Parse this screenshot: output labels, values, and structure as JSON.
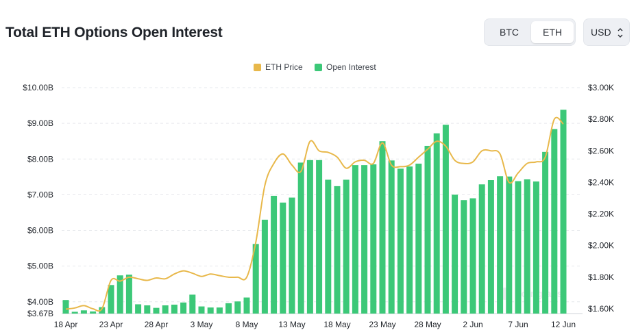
{
  "header": {
    "title": "Total ETH Options Open Interest",
    "asset_toggle": [
      "BTC",
      "ETH"
    ],
    "selected_asset": "ETH",
    "currency": "USD"
  },
  "colors": {
    "bar": "#3cc878",
    "line": "#e8b84a",
    "grid": "#e6e8ec",
    "axis_text": "#1f2329"
  },
  "watermark": "coinglass",
  "chart_data": {
    "type": "bar",
    "title": "Total ETH Options Open Interest",
    "legend": [
      {
        "name": "ETH Price",
        "color": "#e8b84a",
        "kind": "line"
      },
      {
        "name": "Open Interest",
        "color": "#3cc878",
        "kind": "bar"
      }
    ],
    "legend_position": "top-center",
    "grid": true,
    "x_tick_labels": [
      "18 Apr",
      "23 Apr",
      "28 Apr",
      "3 May",
      "8 May",
      "13 May",
      "18 May",
      "23 May",
      "28 May",
      "2 Jun",
      "7 Jun",
      "12 Jun"
    ],
    "x_tick_index": [
      0,
      5,
      10,
      15,
      20,
      25,
      30,
      35,
      40,
      45,
      50,
      55
    ],
    "left_axis": {
      "ticks": [
        "$3.67B",
        "$4.00B",
        "$5.00B",
        "$6.00B",
        "$7.00B",
        "$8.00B",
        "$9.00B",
        "$10.00B"
      ],
      "tick_values": [
        3.67,
        4,
        5,
        6,
        7,
        8,
        9,
        10
      ],
      "range": [
        3.67,
        10
      ]
    },
    "right_axis": {
      "ticks": [
        "$1.60K",
        "$1.80K",
        "$2.00K",
        "$2.20K",
        "$2.40K",
        "$2.60K",
        "$2.80K",
        "$3.00K"
      ],
      "tick_values": [
        1.6,
        1.8,
        2.0,
        2.2,
        2.4,
        2.6,
        2.8,
        3.0
      ],
      "range": [
        1.6,
        3.0
      ]
    },
    "series": [
      {
        "name": "Open Interest",
        "axis": "left",
        "unit": "USD billions",
        "values": [
          4.05,
          3.72,
          3.76,
          3.73,
          3.85,
          4.47,
          4.74,
          4.76,
          3.93,
          3.9,
          3.83,
          3.9,
          3.92,
          3.98,
          4.2,
          3.87,
          3.84,
          3.84,
          3.96,
          4.01,
          4.12,
          5.62,
          6.3,
          6.97,
          6.78,
          6.92,
          7.9,
          7.97,
          7.97,
          7.42,
          7.24,
          7.42,
          7.83,
          7.83,
          7.85,
          8.5,
          7.96,
          7.73,
          7.79,
          7.87,
          8.37,
          8.72,
          8.96,
          7.0,
          6.85,
          6.9,
          7.29,
          7.41,
          7.52,
          7.51,
          7.38,
          7.43,
          7.37,
          8.2,
          8.84,
          9.38
        ]
      },
      {
        "name": "ETH Price",
        "axis": "right",
        "unit": "USD thousands",
        "values": [
          1.598,
          1.605,
          1.62,
          1.6,
          1.6,
          1.78,
          1.775,
          1.8,
          1.79,
          1.78,
          1.795,
          1.79,
          1.82,
          1.84,
          1.825,
          1.805,
          1.82,
          1.81,
          1.8,
          1.8,
          1.8,
          2.02,
          2.38,
          2.52,
          2.58,
          2.51,
          2.47,
          2.66,
          2.6,
          2.59,
          2.56,
          2.49,
          2.53,
          2.54,
          2.52,
          2.65,
          2.51,
          2.5,
          2.51,
          2.56,
          2.61,
          2.66,
          2.63,
          2.54,
          2.52,
          2.53,
          2.6,
          2.6,
          2.58,
          2.4,
          2.46,
          2.52,
          2.53,
          2.56,
          2.8,
          2.77
        ]
      }
    ]
  }
}
